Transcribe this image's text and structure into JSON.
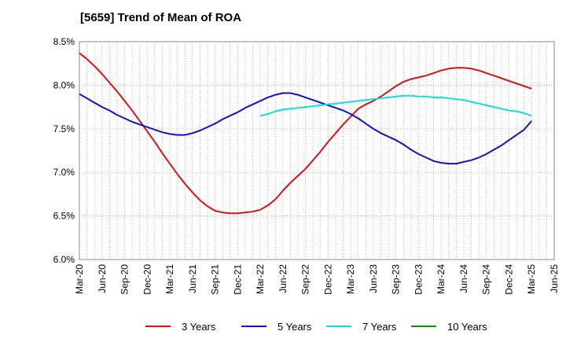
{
  "title": "[5659]  Trend of Mean of ROA",
  "chart_data": {
    "type": "line",
    "title": "[5659]  Trend of Mean of ROA",
    "xlabel": "",
    "ylabel": "",
    "ylim": [
      6.0,
      8.5
    ],
    "y_ticks": [
      "6.0%",
      "6.5%",
      "7.0%",
      "7.5%",
      "8.0%",
      "8.5%"
    ],
    "x_ticks": [
      "Mar-20",
      "Jun-20",
      "Sep-20",
      "Dec-20",
      "Mar-21",
      "Jun-21",
      "Sep-21",
      "Dec-21",
      "Mar-22",
      "Jun-22",
      "Sep-22",
      "Dec-22",
      "Mar-23",
      "Jun-23",
      "Sep-23",
      "Dec-23",
      "Mar-24",
      "Jun-24",
      "Sep-24",
      "Dec-24",
      "Mar-25",
      "Jun-25"
    ],
    "grid": true,
    "legend_position": "bottom",
    "x_unit": "month",
    "series": [
      {
        "name": "3 Years",
        "color": "#dd1111",
        "points": [
          [
            "2020-03",
            8.37
          ],
          [
            "2020-04",
            8.3
          ],
          [
            "2020-05",
            8.22
          ],
          [
            "2020-06",
            8.13
          ],
          [
            "2020-07",
            8.03
          ],
          [
            "2020-08",
            7.93
          ],
          [
            "2020-09",
            7.82
          ],
          [
            "2020-10",
            7.71
          ],
          [
            "2020-11",
            7.59
          ],
          [
            "2020-12",
            7.47
          ],
          [
            "2021-01",
            7.35
          ],
          [
            "2021-02",
            7.22
          ],
          [
            "2021-03",
            7.1
          ],
          [
            "2021-04",
            6.98
          ],
          [
            "2021-05",
            6.87
          ],
          [
            "2021-06",
            6.77
          ],
          [
            "2021-07",
            6.68
          ],
          [
            "2021-08",
            6.61
          ],
          [
            "2021-09",
            6.56
          ],
          [
            "2021-10",
            6.54
          ],
          [
            "2021-11",
            6.53
          ],
          [
            "2021-12",
            6.53
          ],
          [
            "2022-01",
            6.54
          ],
          [
            "2022-02",
            6.55
          ],
          [
            "2022-03",
            6.57
          ],
          [
            "2022-04",
            6.62
          ],
          [
            "2022-05",
            6.69
          ],
          [
            "2022-06",
            6.79
          ],
          [
            "2022-07",
            6.88
          ],
          [
            "2022-08",
            6.96
          ],
          [
            "2022-09",
            7.04
          ],
          [
            "2022-10",
            7.14
          ],
          [
            "2022-11",
            7.24
          ],
          [
            "2022-12",
            7.35
          ],
          [
            "2023-01",
            7.45
          ],
          [
            "2023-02",
            7.55
          ],
          [
            "2023-03",
            7.64
          ],
          [
            "2023-04",
            7.73
          ],
          [
            "2023-05",
            7.78
          ],
          [
            "2023-06",
            7.82
          ],
          [
            "2023-07",
            7.87
          ],
          [
            "2023-08",
            7.93
          ],
          [
            "2023-09",
            7.99
          ],
          [
            "2023-10",
            8.04
          ],
          [
            "2023-11",
            8.07
          ],
          [
            "2023-12",
            8.09
          ],
          [
            "2024-01",
            8.11
          ],
          [
            "2024-02",
            8.14
          ],
          [
            "2024-03",
            8.17
          ],
          [
            "2024-04",
            8.19
          ],
          [
            "2024-05",
            8.2
          ],
          [
            "2024-06",
            8.2
          ],
          [
            "2024-07",
            8.19
          ],
          [
            "2024-08",
            8.17
          ],
          [
            "2024-09",
            8.14
          ],
          [
            "2024-10",
            8.11
          ],
          [
            "2024-11",
            8.08
          ],
          [
            "2024-12",
            8.05
          ],
          [
            "2025-01",
            8.02
          ],
          [
            "2025-02",
            7.99
          ],
          [
            "2025-03",
            7.96
          ]
        ]
      },
      {
        "name": "5 Years",
        "color": "#1111cc",
        "points": [
          [
            "2020-03",
            7.9
          ],
          [
            "2020-04",
            7.85
          ],
          [
            "2020-05",
            7.8
          ],
          [
            "2020-06",
            7.75
          ],
          [
            "2020-07",
            7.71
          ],
          [
            "2020-08",
            7.66
          ],
          [
            "2020-09",
            7.62
          ],
          [
            "2020-10",
            7.58
          ],
          [
            "2020-11",
            7.55
          ],
          [
            "2020-12",
            7.52
          ],
          [
            "2021-01",
            7.49
          ],
          [
            "2021-02",
            7.46
          ],
          [
            "2021-03",
            7.44
          ],
          [
            "2021-04",
            7.43
          ],
          [
            "2021-05",
            7.43
          ],
          [
            "2021-06",
            7.45
          ],
          [
            "2021-07",
            7.48
          ],
          [
            "2021-08",
            7.52
          ],
          [
            "2021-09",
            7.56
          ],
          [
            "2021-10",
            7.61
          ],
          [
            "2021-11",
            7.65
          ],
          [
            "2021-12",
            7.69
          ],
          [
            "2022-01",
            7.74
          ],
          [
            "2022-02",
            7.78
          ],
          [
            "2022-03",
            7.82
          ],
          [
            "2022-04",
            7.86
          ],
          [
            "2022-05",
            7.89
          ],
          [
            "2022-06",
            7.91
          ],
          [
            "2022-07",
            7.91
          ],
          [
            "2022-08",
            7.89
          ],
          [
            "2022-09",
            7.86
          ],
          [
            "2022-10",
            7.83
          ],
          [
            "2022-11",
            7.8
          ],
          [
            "2022-12",
            7.77
          ],
          [
            "2023-01",
            7.74
          ],
          [
            "2023-02",
            7.71
          ],
          [
            "2023-03",
            7.67
          ],
          [
            "2023-04",
            7.62
          ],
          [
            "2023-05",
            7.56
          ],
          [
            "2023-06",
            7.5
          ],
          [
            "2023-07",
            7.45
          ],
          [
            "2023-08",
            7.41
          ],
          [
            "2023-09",
            7.37
          ],
          [
            "2023-10",
            7.32
          ],
          [
            "2023-11",
            7.26
          ],
          [
            "2023-12",
            7.21
          ],
          [
            "2024-01",
            7.17
          ],
          [
            "2024-02",
            7.13
          ],
          [
            "2024-03",
            7.11
          ],
          [
            "2024-04",
            7.1
          ],
          [
            "2024-05",
            7.1
          ],
          [
            "2024-06",
            7.12
          ],
          [
            "2024-07",
            7.14
          ],
          [
            "2024-08",
            7.17
          ],
          [
            "2024-09",
            7.21
          ],
          [
            "2024-10",
            7.26
          ],
          [
            "2024-11",
            7.31
          ],
          [
            "2024-12",
            7.37
          ],
          [
            "2025-01",
            7.43
          ],
          [
            "2025-02",
            7.49
          ],
          [
            "2025-03",
            7.59
          ]
        ]
      },
      {
        "name": "7 Years",
        "color": "#11dddd",
        "points": [
          [
            "2022-03",
            7.65
          ],
          [
            "2022-04",
            7.67
          ],
          [
            "2022-05",
            7.7
          ],
          [
            "2022-06",
            7.72
          ],
          [
            "2022-07",
            7.73
          ],
          [
            "2022-08",
            7.74
          ],
          [
            "2022-09",
            7.75
          ],
          [
            "2022-10",
            7.76
          ],
          [
            "2022-11",
            7.77
          ],
          [
            "2022-12",
            7.78
          ],
          [
            "2023-01",
            7.79
          ],
          [
            "2023-02",
            7.8
          ],
          [
            "2023-03",
            7.81
          ],
          [
            "2023-04",
            7.82
          ],
          [
            "2023-05",
            7.83
          ],
          [
            "2023-06",
            7.84
          ],
          [
            "2023-07",
            7.85
          ],
          [
            "2023-08",
            7.86
          ],
          [
            "2023-09",
            7.87
          ],
          [
            "2023-10",
            7.88
          ],
          [
            "2023-11",
            7.88
          ],
          [
            "2023-12",
            7.87
          ],
          [
            "2024-01",
            7.87
          ],
          [
            "2024-02",
            7.86
          ],
          [
            "2024-03",
            7.86
          ],
          [
            "2024-04",
            7.85
          ],
          [
            "2024-05",
            7.84
          ],
          [
            "2024-06",
            7.83
          ],
          [
            "2024-07",
            7.81
          ],
          [
            "2024-08",
            7.79
          ],
          [
            "2024-09",
            7.77
          ],
          [
            "2024-10",
            7.75
          ],
          [
            "2024-11",
            7.73
          ],
          [
            "2024-12",
            7.71
          ],
          [
            "2025-01",
            7.7
          ],
          [
            "2025-02",
            7.68
          ],
          [
            "2025-03",
            7.65
          ]
        ]
      },
      {
        "name": "10 Years",
        "color": "#118811",
        "points": []
      }
    ]
  }
}
